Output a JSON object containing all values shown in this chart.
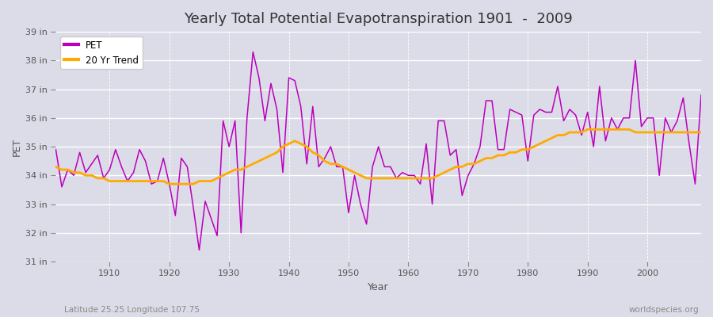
{
  "title": "Yearly Total Potential Evapotranspiration 1901  -  2009",
  "xlabel": "Year",
  "ylabel": "PET",
  "subtitle_left": "Latitude 25.25 Longitude 107.75",
  "subtitle_right": "worldspecies.org",
  "pet_color": "#bb00bb",
  "trend_color": "#ffaa00",
  "bg_color": "#dcdce8",
  "plot_bg_color": "#dcdce8",
  "ylim": [
    31,
    39
  ],
  "yticks": [
    31,
    32,
    33,
    34,
    35,
    36,
    37,
    38,
    39
  ],
  "ytick_labels": [
    "31 in",
    "32 in",
    "33 in",
    "34 in",
    "35 in",
    "36 in",
    "37 in",
    "38 in",
    "39 in"
  ],
  "years": [
    1901,
    1902,
    1903,
    1904,
    1905,
    1906,
    1907,
    1908,
    1909,
    1910,
    1911,
    1912,
    1913,
    1914,
    1915,
    1916,
    1917,
    1918,
    1919,
    1920,
    1921,
    1922,
    1923,
    1924,
    1925,
    1926,
    1927,
    1928,
    1929,
    1930,
    1931,
    1932,
    1933,
    1934,
    1935,
    1936,
    1937,
    1938,
    1939,
    1940,
    1941,
    1942,
    1943,
    1944,
    1945,
    1946,
    1947,
    1948,
    1949,
    1950,
    1951,
    1952,
    1953,
    1954,
    1955,
    1956,
    1957,
    1958,
    1959,
    1960,
    1961,
    1962,
    1963,
    1964,
    1965,
    1966,
    1967,
    1968,
    1969,
    1970,
    1971,
    1972,
    1973,
    1974,
    1975,
    1976,
    1977,
    1978,
    1979,
    1980,
    1981,
    1982,
    1983,
    1984,
    1985,
    1986,
    1987,
    1988,
    1989,
    1990,
    1991,
    1992,
    1993,
    1994,
    1995,
    1996,
    1997,
    1998,
    1999,
    2000,
    2001,
    2002,
    2003,
    2004,
    2005,
    2006,
    2007,
    2008,
    2009
  ],
  "pet_values": [
    34.9,
    33.6,
    34.2,
    34.0,
    34.8,
    34.1,
    34.4,
    34.7,
    33.9,
    34.2,
    34.9,
    34.3,
    33.8,
    34.1,
    34.9,
    34.5,
    33.7,
    33.8,
    34.6,
    33.7,
    32.6,
    34.6,
    34.3,
    32.9,
    31.4,
    33.1,
    32.5,
    31.9,
    35.9,
    35.0,
    35.9,
    32.0,
    36.0,
    38.3,
    37.4,
    35.9,
    37.2,
    36.3,
    34.1,
    37.4,
    37.3,
    36.4,
    34.4,
    36.4,
    34.3,
    34.6,
    35.0,
    34.3,
    34.3,
    32.7,
    34.0,
    33.0,
    32.3,
    34.3,
    35.0,
    34.3,
    34.3,
    33.9,
    34.1,
    34.0,
    34.0,
    33.7,
    35.1,
    33.0,
    35.9,
    35.9,
    34.7,
    34.9,
    33.3,
    34.0,
    34.4,
    35.0,
    36.6,
    36.6,
    34.9,
    34.9,
    36.3,
    36.2,
    36.1,
    34.5,
    36.1,
    36.3,
    36.2,
    36.2,
    37.1,
    35.9,
    36.3,
    36.1,
    35.4,
    36.2,
    35.0,
    37.1,
    35.2,
    36.0,
    35.6,
    36.0,
    36.0,
    38.0,
    35.7,
    36.0,
    36.0,
    34.0,
    36.0,
    35.5,
    35.9,
    36.7,
    35.1,
    33.7,
    36.8
  ],
  "trend_values": [
    34.3,
    34.2,
    34.2,
    34.1,
    34.1,
    34.0,
    34.0,
    33.9,
    33.9,
    33.8,
    33.8,
    33.8,
    33.8,
    33.8,
    33.8,
    33.8,
    33.8,
    33.8,
    33.8,
    33.7,
    33.7,
    33.7,
    33.7,
    33.7,
    33.8,
    33.8,
    33.8,
    33.9,
    34.0,
    34.1,
    34.2,
    34.2,
    34.3,
    34.4,
    34.5,
    34.6,
    34.7,
    34.8,
    35.0,
    35.1,
    35.2,
    35.1,
    35.0,
    34.8,
    34.7,
    34.5,
    34.4,
    34.4,
    34.3,
    34.2,
    34.1,
    34.0,
    33.9,
    33.9,
    33.9,
    33.9,
    33.9,
    33.9,
    33.9,
    33.9,
    33.9,
    33.9,
    33.9,
    33.9,
    34.0,
    34.1,
    34.2,
    34.3,
    34.3,
    34.4,
    34.4,
    34.5,
    34.6,
    34.6,
    34.7,
    34.7,
    34.8,
    34.8,
    34.9,
    34.9,
    35.0,
    35.1,
    35.2,
    35.3,
    35.4,
    35.4,
    35.5,
    35.5,
    35.5,
    35.6,
    35.6,
    35.6,
    35.6,
    35.6,
    35.6,
    35.6,
    35.6,
    35.5,
    35.5,
    35.5,
    35.5,
    35.5,
    35.5,
    35.5,
    35.5,
    35.5,
    35.5,
    35.5,
    35.5
  ]
}
